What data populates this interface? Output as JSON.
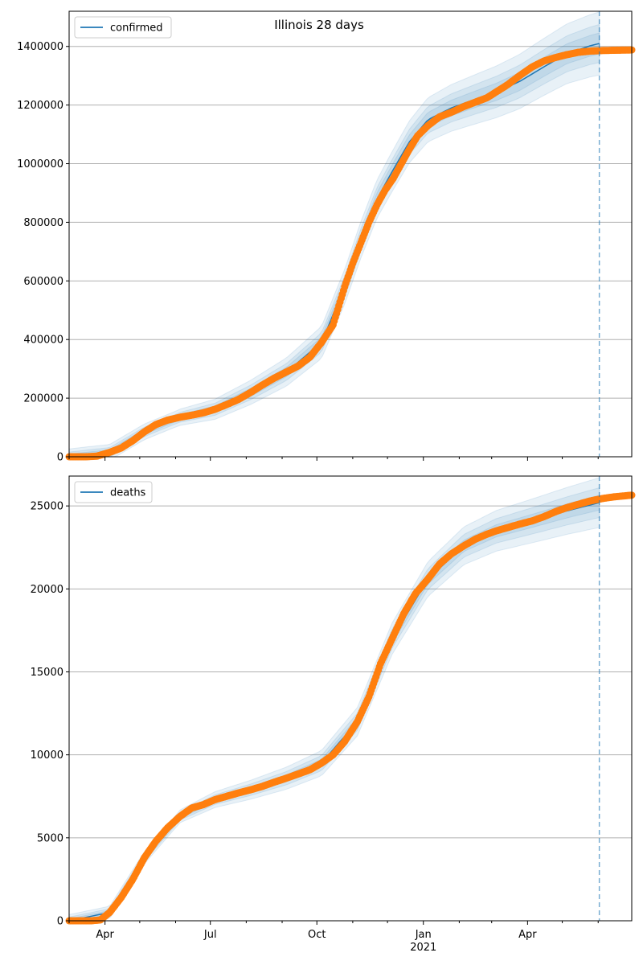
{
  "figure": {
    "suptitle": "Illinois 28 days",
    "colors": {
      "model_line": "#1f77b4",
      "observed_points": "#ff7f0e",
      "band": "#1f77b4",
      "grid": "#b0b0b0",
      "forecast_divider": "#1f77b4"
    }
  },
  "chart_data": [
    {
      "type": "line",
      "title": "",
      "xlabel": "",
      "ylabel": "",
      "legend": {
        "label": "confirmed",
        "placement": "top-left"
      },
      "x_range": [
        "2020-03-01",
        "2021-06-30"
      ],
      "ylim": [
        0,
        1520000
      ],
      "yticks": [
        0,
        200000,
        400000,
        600000,
        800000,
        1000000,
        1200000,
        1400000
      ],
      "ytick_labels": [
        "0",
        "200000",
        "400000",
        "600000",
        "800000",
        "1000000",
        "1200000",
        "1400000"
      ],
      "grid": "horizontal",
      "forecast_date": "2021-06-02",
      "observed": {
        "x": [
          "2020-03-01",
          "2020-03-15",
          "2020-03-25",
          "2020-04-05",
          "2020-04-15",
          "2020-04-25",
          "2020-05-05",
          "2020-05-15",
          "2020-05-25",
          "2020-06-05",
          "2020-06-15",
          "2020-06-25",
          "2020-07-05",
          "2020-07-15",
          "2020-07-25",
          "2020-08-05",
          "2020-08-15",
          "2020-08-25",
          "2020-09-05",
          "2020-09-15",
          "2020-09-25",
          "2020-10-05",
          "2020-10-15",
          "2020-10-25",
          "2020-11-01",
          "2020-11-08",
          "2020-11-15",
          "2020-11-22",
          "2020-11-29",
          "2020-12-06",
          "2020-12-13",
          "2020-12-20",
          "2020-12-27",
          "2021-01-05",
          "2021-01-15",
          "2021-01-25",
          "2021-02-05",
          "2021-02-15",
          "2021-02-25",
          "2021-03-05",
          "2021-03-15",
          "2021-03-25",
          "2021-04-05",
          "2021-04-15",
          "2021-04-25",
          "2021-05-05",
          "2021-05-15",
          "2021-05-25",
          "2021-06-05",
          "2021-06-15",
          "2021-06-30"
        ],
        "y": [
          0,
          0,
          2000,
          15000,
          30000,
          55000,
          85000,
          110000,
          125000,
          135000,
          142000,
          150000,
          162000,
          178000,
          195000,
          220000,
          245000,
          268000,
          290000,
          310000,
          340000,
          390000,
          450000,
          580000,
          660000,
          730000,
          800000,
          860000,
          910000,
          950000,
          1000000,
          1050000,
          1095000,
          1130000,
          1160000,
          1175000,
          1195000,
          1210000,
          1225000,
          1245000,
          1270000,
          1300000,
          1330000,
          1350000,
          1362000,
          1372000,
          1380000,
          1384000,
          1386000,
          1387000,
          1388000
        ]
      },
      "model": {
        "x": [
          "2020-03-01",
          "2020-04-05",
          "2020-05-05",
          "2020-06-05",
          "2020-07-05",
          "2020-08-05",
          "2020-09-05",
          "2020-10-05",
          "2020-10-25",
          "2020-11-08",
          "2020-11-22",
          "2020-12-06",
          "2020-12-20",
          "2021-01-05",
          "2021-01-25",
          "2021-02-15",
          "2021-03-05",
          "2021-03-25",
          "2021-04-15",
          "2021-05-05",
          "2021-05-25",
          "2021-06-02"
        ],
        "y": [
          0,
          15000,
          85000,
          135000,
          162000,
          220000,
          290000,
          390000,
          580000,
          740000,
          880000,
          980000,
          1075000,
          1150000,
          1190000,
          1220000,
          1245000,
          1280000,
          1330000,
          1375000,
          1402000,
          1410000
        ]
      },
      "band_widths": [
        36000,
        65000,
        108000
      ]
    },
    {
      "type": "line",
      "title": "",
      "xlabel": "",
      "ylabel": "",
      "legend": {
        "label": "deaths",
        "placement": "top-left"
      },
      "x_range": [
        "2020-03-01",
        "2021-06-30"
      ],
      "ylim": [
        0,
        26800
      ],
      "yticks": [
        0,
        5000,
        10000,
        15000,
        20000,
        25000
      ],
      "ytick_labels": [
        "0",
        "5000",
        "10000",
        "15000",
        "20000",
        "25000"
      ],
      "xtick_labels": [
        {
          "date": "2020-04-01",
          "label": "Apr"
        },
        {
          "date": "2020-07-01",
          "label": "Jul"
        },
        {
          "date": "2020-10-01",
          "label": "Oct"
        },
        {
          "date": "2021-01-01",
          "label": "Jan",
          "sublabel": "2021"
        },
        {
          "date": "2021-04-01",
          "label": "Apr"
        }
      ],
      "grid": "horizontal",
      "forecast_date": "2021-06-02",
      "observed": {
        "x": [
          "2020-03-01",
          "2020-03-20",
          "2020-03-28",
          "2020-04-05",
          "2020-04-15",
          "2020-04-25",
          "2020-05-05",
          "2020-05-15",
          "2020-05-25",
          "2020-06-05",
          "2020-06-15",
          "2020-06-25",
          "2020-07-05",
          "2020-07-15",
          "2020-07-25",
          "2020-08-05",
          "2020-08-15",
          "2020-08-25",
          "2020-09-05",
          "2020-09-15",
          "2020-09-25",
          "2020-10-05",
          "2020-10-15",
          "2020-10-25",
          "2020-11-05",
          "2020-11-15",
          "2020-11-25",
          "2020-12-05",
          "2020-12-15",
          "2020-12-25",
          "2021-01-05",
          "2021-01-15",
          "2021-01-25",
          "2021-02-05",
          "2021-02-15",
          "2021-02-25",
          "2021-03-05",
          "2021-03-15",
          "2021-03-25",
          "2021-04-05",
          "2021-04-15",
          "2021-04-25",
          "2021-05-05",
          "2021-05-15",
          "2021-05-25",
          "2021-06-05",
          "2021-06-15",
          "2021-06-30"
        ],
        "y": [
          0,
          0,
          50,
          500,
          1400,
          2500,
          3800,
          4800,
          5600,
          6300,
          6800,
          7000,
          7300,
          7500,
          7700,
          7900,
          8100,
          8350,
          8600,
          8850,
          9100,
          9500,
          10000,
          10800,
          12000,
          13500,
          15500,
          17000,
          18500,
          19700,
          20600,
          21500,
          22100,
          22600,
          23000,
          23300,
          23500,
          23700,
          23900,
          24100,
          24350,
          24650,
          24900,
          25100,
          25300,
          25450,
          25550,
          25650
        ]
      },
      "model": {
        "x": [
          "2020-03-01",
          "2020-04-05",
          "2020-05-05",
          "2020-06-05",
          "2020-07-05",
          "2020-08-05",
          "2020-09-05",
          "2020-10-05",
          "2020-11-05",
          "2020-12-05",
          "2021-01-05",
          "2021-02-05",
          "2021-03-05",
          "2021-04-05",
          "2021-05-05",
          "2021-06-02"
        ],
        "y": [
          0,
          500,
          3800,
          6300,
          7300,
          7900,
          8600,
          9500,
          12000,
          17000,
          20600,
          22600,
          23500,
          24100,
          24700,
          25200
        ]
      },
      "band_widths": [
        450,
        900,
        1500
      ]
    }
  ]
}
